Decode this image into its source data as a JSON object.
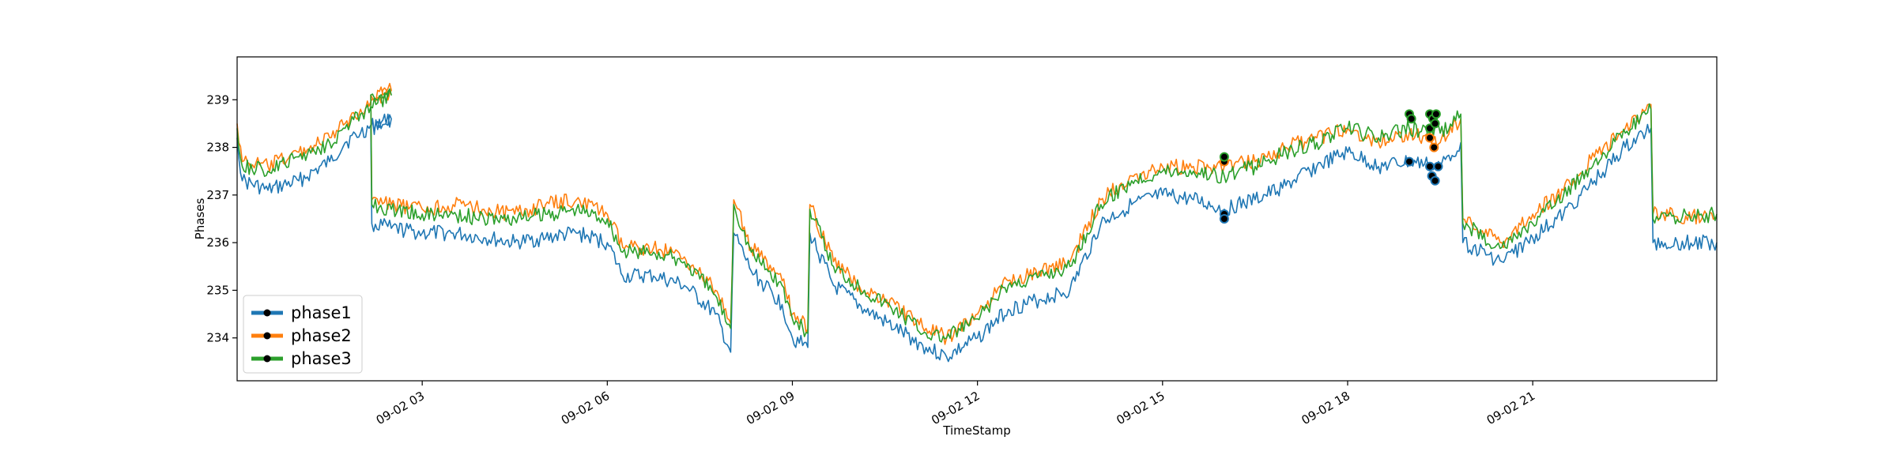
{
  "chart_data": {
    "type": "line",
    "title": "",
    "xlabel": "TimeStamp",
    "ylabel": "Phases",
    "x_range": [
      "09-02 00:00",
      "09-02 23:59"
    ],
    "x_ticks": [
      {
        "value": "09-02 03:00",
        "label": "09-02 03"
      },
      {
        "value": "09-02 06:00",
        "label": "09-02 06"
      },
      {
        "value": "09-02 09:00",
        "label": "09-02 09"
      },
      {
        "value": "09-02 12:00",
        "label": "09-02 12"
      },
      {
        "value": "09-02 15:00",
        "label": "09-02 15"
      },
      {
        "value": "09-02 18:00",
        "label": "09-02 18"
      },
      {
        "value": "09-02 21:00",
        "label": "09-02 21"
      }
    ],
    "ylim": [
      233.1,
      239.9
    ],
    "y_ticks": [
      234,
      235,
      236,
      237,
      238,
      239
    ],
    "grid": false,
    "legend_position": "lower-left",
    "series": [
      {
        "name": "phase1",
        "color": "#1f77b4",
        "points": [
          [
            "09-02 00:00",
            238.2
          ],
          [
            "09-02 00:05",
            237.3
          ],
          [
            "09-02 00:30",
            237.1
          ],
          [
            "09-02 01:00",
            237.3
          ],
          [
            "09-02 01:30",
            237.7
          ],
          [
            "09-02 01:45",
            238.1
          ],
          [
            "09-02 02:00",
            238.3
          ],
          [
            "09-02 02:15",
            238.5
          ],
          [
            "09-02 02:30",
            238.6
          ],
          [
            "09-02 02:10",
            238.4
          ],
          [
            "09-02 02:11",
            236.4
          ],
          [
            "09-02 02:30",
            236.3
          ],
          [
            "09-02 03:00",
            236.2
          ],
          [
            "09-02 03:30",
            236.2
          ],
          [
            "09-02 04:00",
            236.1
          ],
          [
            "09-02 04:30",
            236.0
          ],
          [
            "09-02 05:00",
            236.1
          ],
          [
            "09-02 05:30",
            236.2
          ],
          [
            "09-02 06:00",
            236.0
          ],
          [
            "09-02 06:15",
            235.3
          ],
          [
            "09-02 06:45",
            235.3
          ],
          [
            "09-02 07:15",
            235.1
          ],
          [
            "09-02 07:45",
            234.5
          ],
          [
            "09-02 08:00",
            233.7
          ],
          [
            "09-02 08:03",
            236.2
          ],
          [
            "09-02 08:20",
            235.4
          ],
          [
            "09-02 08:50",
            234.7
          ],
          [
            "09-02 09:00",
            234.0
          ],
          [
            "09-02 09:15",
            233.8
          ],
          [
            "09-02 09:17",
            236.2
          ],
          [
            "09-02 09:40",
            235.1
          ],
          [
            "09-02 10:10",
            234.6
          ],
          [
            "09-02 10:40",
            234.2
          ],
          [
            "09-02 11:10",
            233.8
          ],
          [
            "09-02 11:30",
            233.6
          ],
          [
            "09-02 12:00",
            234.0
          ],
          [
            "09-02 12:30",
            234.6
          ],
          [
            "09-02 13:00",
            234.8
          ],
          [
            "09-02 13:30",
            235.0
          ],
          [
            "09-02 14:00",
            236.4
          ],
          [
            "09-02 14:30",
            236.8
          ],
          [
            "09-02 15:00",
            237.0
          ],
          [
            "09-02 15:30",
            236.9
          ],
          [
            "09-02 16:00",
            236.7
          ],
          [
            "09-02 16:30",
            236.9
          ],
          [
            "09-02 17:00",
            237.2
          ],
          [
            "09-02 17:30",
            237.6
          ],
          [
            "09-02 18:00",
            237.9
          ],
          [
            "09-02 18:30",
            237.6
          ],
          [
            "09-02 19:00",
            237.7
          ],
          [
            "09-02 19:30",
            237.6
          ],
          [
            "09-02 19:50",
            238.1
          ],
          [
            "09-02 19:52",
            236.0
          ],
          [
            "09-02 20:30",
            235.6
          ],
          [
            "09-02 21:00",
            236.1
          ],
          [
            "09-02 21:30",
            236.6
          ],
          [
            "09-02 22:00",
            237.3
          ],
          [
            "09-02 22:30",
            238.0
          ],
          [
            "09-02 22:55",
            238.4
          ],
          [
            "09-02 22:57",
            236.0
          ],
          [
            "09-02 23:59",
            236.0
          ]
        ]
      },
      {
        "name": "phase2",
        "color": "#ff7f0e",
        "points": [
          [
            "09-02 00:00",
            238.5
          ],
          [
            "09-02 00:05",
            237.7
          ],
          [
            "09-02 00:30",
            237.6
          ],
          [
            "09-02 01:00",
            237.9
          ],
          [
            "09-02 01:30",
            238.2
          ],
          [
            "09-02 01:45",
            238.5
          ],
          [
            "09-02 02:00",
            238.8
          ],
          [
            "09-02 02:15",
            239.0
          ],
          [
            "09-02 02:30",
            239.2
          ],
          [
            "09-02 02:10",
            239.1
          ],
          [
            "09-02 02:11",
            236.9
          ],
          [
            "09-02 02:30",
            236.8
          ],
          [
            "09-02 03:00",
            236.7
          ],
          [
            "09-02 03:30",
            236.8
          ],
          [
            "09-02 04:00",
            236.7
          ],
          [
            "09-02 04:30",
            236.6
          ],
          [
            "09-02 05:00",
            236.8
          ],
          [
            "09-02 05:30",
            236.9
          ],
          [
            "09-02 06:00",
            236.6
          ],
          [
            "09-02 06:15",
            235.9
          ],
          [
            "09-02 06:45",
            235.9
          ],
          [
            "09-02 07:15",
            235.7
          ],
          [
            "09-02 07:45",
            235.0
          ],
          [
            "09-02 08:00",
            234.3
          ],
          [
            "09-02 08:03",
            236.9
          ],
          [
            "09-02 08:20",
            235.9
          ],
          [
            "09-02 08:50",
            235.2
          ],
          [
            "09-02 09:00",
            234.5
          ],
          [
            "09-02 09:15",
            234.2
          ],
          [
            "09-02 09:17",
            236.8
          ],
          [
            "09-02 09:40",
            235.6
          ],
          [
            "09-02 10:10",
            235.0
          ],
          [
            "09-02 10:40",
            234.7
          ],
          [
            "09-02 11:10",
            234.2
          ],
          [
            "09-02 11:30",
            234.0
          ],
          [
            "09-02 12:00",
            234.5
          ],
          [
            "09-02 12:30",
            235.2
          ],
          [
            "09-02 13:00",
            235.4
          ],
          [
            "09-02 13:30",
            235.6
          ],
          [
            "09-02 14:00",
            236.9
          ],
          [
            "09-02 14:30",
            237.4
          ],
          [
            "09-02 15:00",
            237.6
          ],
          [
            "09-02 15:30",
            237.6
          ],
          [
            "09-02 16:00",
            237.6
          ],
          [
            "09-02 16:30",
            237.7
          ],
          [
            "09-02 17:00",
            238.0
          ],
          [
            "09-02 17:30",
            238.2
          ],
          [
            "09-02 18:00",
            238.4
          ],
          [
            "09-02 18:30",
            238.1
          ],
          [
            "09-02 19:00",
            238.3
          ],
          [
            "09-02 19:30",
            238.1
          ],
          [
            "09-02 19:50",
            238.6
          ],
          [
            "09-02 19:52",
            236.5
          ],
          [
            "09-02 20:30",
            236.0
          ],
          [
            "09-02 21:00",
            236.6
          ],
          [
            "09-02 21:30",
            237.1
          ],
          [
            "09-02 22:00",
            237.8
          ],
          [
            "09-02 22:30",
            238.4
          ],
          [
            "09-02 22:55",
            238.9
          ],
          [
            "09-02 22:57",
            236.6
          ],
          [
            "09-02 23:59",
            236.5
          ]
        ]
      },
      {
        "name": "phase3",
        "color": "#2ca02c",
        "points": [
          [
            "09-02 00:00",
            238.4
          ],
          [
            "09-02 00:05",
            237.6
          ],
          [
            "09-02 00:30",
            237.5
          ],
          [
            "09-02 01:00",
            237.8
          ],
          [
            "09-02 01:30",
            238.1
          ],
          [
            "09-02 01:45",
            238.4
          ],
          [
            "09-02 02:00",
            238.7
          ],
          [
            "09-02 02:15",
            238.9
          ],
          [
            "09-02 02:30",
            239.1
          ],
          [
            "09-02 02:10",
            239.1
          ],
          [
            "09-02 02:11",
            236.8
          ],
          [
            "09-02 02:30",
            236.7
          ],
          [
            "09-02 03:00",
            236.6
          ],
          [
            "09-02 03:30",
            236.6
          ],
          [
            "09-02 04:00",
            236.5
          ],
          [
            "09-02 04:30",
            236.5
          ],
          [
            "09-02 05:00",
            236.6
          ],
          [
            "09-02 05:30",
            236.7
          ],
          [
            "09-02 06:00",
            236.5
          ],
          [
            "09-02 06:15",
            235.8
          ],
          [
            "09-02 06:45",
            235.8
          ],
          [
            "09-02 07:15",
            235.6
          ],
          [
            "09-02 07:45",
            234.9
          ],
          [
            "09-02 08:00",
            234.2
          ],
          [
            "09-02 08:03",
            236.8
          ],
          [
            "09-02 08:20",
            235.8
          ],
          [
            "09-02 08:50",
            235.1
          ],
          [
            "09-02 09:00",
            234.4
          ],
          [
            "09-02 09:15",
            234.1
          ],
          [
            "09-02 09:17",
            236.7
          ],
          [
            "09-02 09:40",
            235.5
          ],
          [
            "09-02 10:10",
            235.0
          ],
          [
            "09-02 10:40",
            234.6
          ],
          [
            "09-02 11:10",
            234.1
          ],
          [
            "09-02 11:30",
            234.0
          ],
          [
            "09-02 12:00",
            234.4
          ],
          [
            "09-02 12:30",
            235.1
          ],
          [
            "09-02 13:00",
            235.3
          ],
          [
            "09-02 13:30",
            235.5
          ],
          [
            "09-02 14:00",
            236.8
          ],
          [
            "09-02 14:30",
            237.3
          ],
          [
            "09-02 15:00",
            237.5
          ],
          [
            "09-02 15:30",
            237.5
          ],
          [
            "09-02 16:00",
            237.4
          ],
          [
            "09-02 16:30",
            237.6
          ],
          [
            "09-02 17:00",
            237.9
          ],
          [
            "09-02 17:30",
            238.1
          ],
          [
            "09-02 18:00",
            238.4
          ],
          [
            "09-02 18:30",
            238.2
          ],
          [
            "09-02 19:00",
            238.4
          ],
          [
            "09-02 19:30",
            238.3
          ],
          [
            "09-02 19:50",
            238.7
          ],
          [
            "09-02 19:52",
            236.4
          ],
          [
            "09-02 20:30",
            235.9
          ],
          [
            "09-02 21:00",
            236.4
          ],
          [
            "09-02 21:30",
            237.0
          ],
          [
            "09-02 22:00",
            237.7
          ],
          [
            "09-02 22:30",
            238.3
          ],
          [
            "09-02 22:55",
            238.8
          ],
          [
            "09-02 22:57",
            236.5
          ],
          [
            "09-02 23:59",
            236.6
          ]
        ]
      }
    ],
    "marker_points": [
      {
        "series": "phase1",
        "x": "09-02 16:00",
        "y": 236.6
      },
      {
        "series": "phase1",
        "x": "09-02 16:00",
        "y": 236.5
      },
      {
        "series": "phase1",
        "x": "09-02 19:00",
        "y": 237.7
      },
      {
        "series": "phase1",
        "x": "09-02 19:20",
        "y": 237.6
      },
      {
        "series": "phase1",
        "x": "09-02 19:22",
        "y": 237.4
      },
      {
        "series": "phase1",
        "x": "09-02 19:25",
        "y": 237.3
      },
      {
        "series": "phase1",
        "x": "09-02 19:28",
        "y": 237.6
      },
      {
        "series": "phase2",
        "x": "09-02 16:00",
        "y": 237.7
      },
      {
        "series": "phase2",
        "x": "09-02 19:20",
        "y": 238.2
      },
      {
        "series": "phase2",
        "x": "09-02 19:24",
        "y": 238.0
      },
      {
        "series": "phase3",
        "x": "09-02 16:00",
        "y": 237.8
      },
      {
        "series": "phase3",
        "x": "09-02 19:00",
        "y": 238.7
      },
      {
        "series": "phase3",
        "x": "09-02 19:02",
        "y": 238.6
      },
      {
        "series": "phase3",
        "x": "09-02 19:20",
        "y": 238.7
      },
      {
        "series": "phase3",
        "x": "09-02 19:23",
        "y": 238.6
      },
      {
        "series": "phase3",
        "x": "09-02 19:26",
        "y": 238.7
      },
      {
        "series": "phase3",
        "x": "09-02 19:20",
        "y": 238.4
      },
      {
        "series": "phase3",
        "x": "09-02 19:25",
        "y": 238.5
      }
    ],
    "legend": [
      {
        "name": "phase1",
        "color": "#1f77b4"
      },
      {
        "name": "phase2",
        "color": "#ff7f0e"
      },
      {
        "name": "phase3",
        "color": "#2ca02c"
      }
    ]
  }
}
